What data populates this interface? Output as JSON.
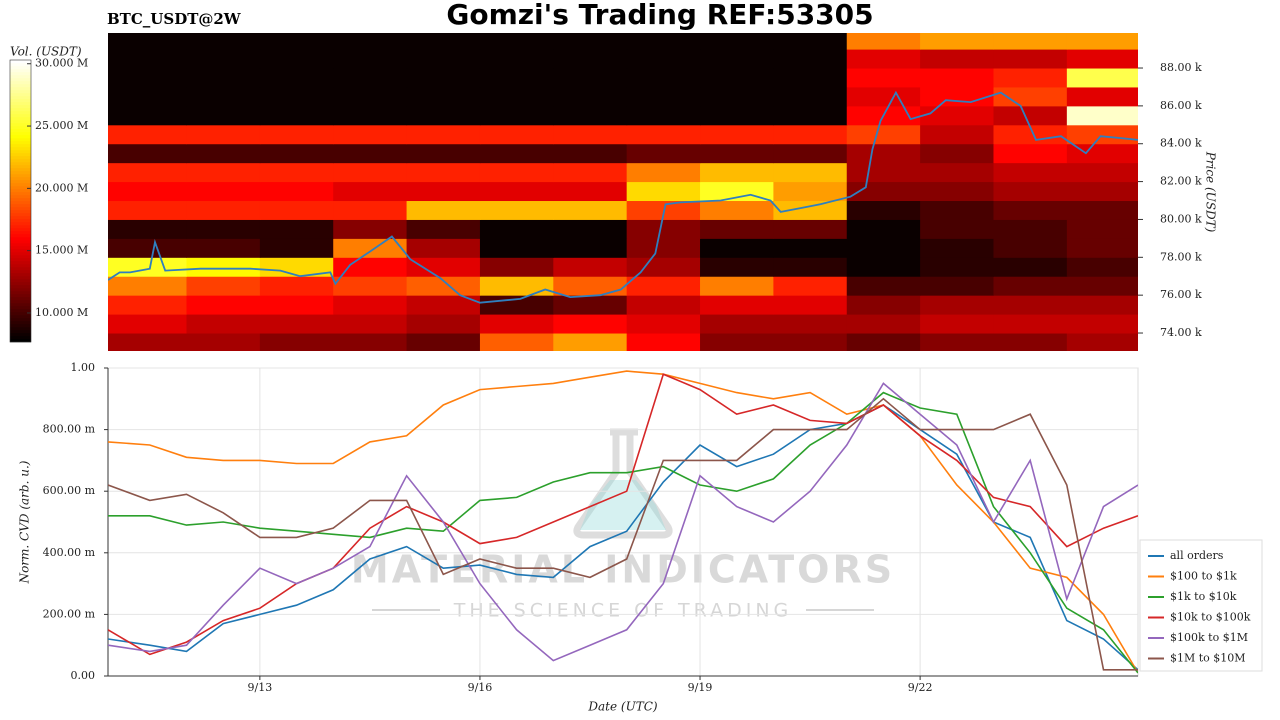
{
  "page_title": "Gomzi's Trading REF:53305",
  "watermark": {
    "brand": "MATERIAL INDICATORS",
    "tagline": "THE SCIENCE OF TRADING"
  },
  "chart_data": [
    {
      "type": "heatmap",
      "title": "BTC_USDT@2W",
      "ylabel": "Price (USDT)",
      "cmap": "hot",
      "xlim": [
        10.93,
        24.97
      ],
      "ylim": [
        73050,
        89850
      ],
      "yticks": [
        {
          "value": 74000,
          "label": "74.00 k"
        },
        {
          "value": 76000,
          "label": "76.00 k"
        },
        {
          "value": 78000,
          "label": "78.00 k"
        },
        {
          "value": 80000,
          "label": "80.00 k"
        },
        {
          "value": 82000,
          "label": "82.00 k"
        },
        {
          "value": 84000,
          "label": "84.00 k"
        },
        {
          "value": 86000,
          "label": "86.00 k"
        },
        {
          "value": 88000,
          "label": "88.00 k"
        }
      ],
      "colorbar": {
        "label": "Vol. (USDT)",
        "lim": [
          7670000,
          30300000
        ],
        "ticks": [
          {
            "value": 10000000,
            "label": "10.000 M"
          },
          {
            "value": 15000000,
            "label": "15.000 M"
          },
          {
            "value": 20000000,
            "label": "20.000 M"
          },
          {
            "value": 25000000,
            "label": "25.000 M"
          },
          {
            "value": 30000000,
            "label": "30.000 M"
          }
        ]
      },
      "x_edges": [
        10.93,
        12,
        13,
        14,
        15,
        16,
        17,
        18,
        19,
        20,
        21,
        22,
        23,
        24,
        24.97
      ],
      "y_edges": [
        73050,
        74000,
        75000,
        76000,
        77000,
        78000,
        79000,
        80000,
        81000,
        82000,
        83000,
        84000,
        85000,
        86000,
        87000,
        88000,
        89000,
        89850
      ],
      "z": [
        [
          13000000.0,
          13000000.0,
          12000000.0,
          12000000.0,
          11000000.0,
          19000000.0,
          21000000.0,
          16000000.0,
          12000000.0,
          12000000.0,
          11000000.0,
          12000000.0,
          12000000.0,
          13000000.0
        ],
        [
          15000000.0,
          14000000.0,
          14000000.0,
          14000000.0,
          13000000.0,
          15000000.0,
          16000000.0,
          15000000.0,
          13000000.0,
          13000000.0,
          13000000.0,
          14000000.0,
          14000000.0,
          14000000.0
        ],
        [
          17000000.0,
          16000000.0,
          16000000.0,
          15000000.0,
          14000000.0,
          10000000.0,
          11000000.0,
          14000000.0,
          15000000.0,
          15000000.0,
          12000000.0,
          13000000.0,
          13000000.0,
          13000000.0
        ],
        [
          20000000.0,
          18000000.0,
          17000000.0,
          18000000.0,
          19000000.0,
          22000000.0,
          19000000.0,
          17000000.0,
          20000000.0,
          17000000.0,
          10000000.0,
          10000000.0,
          11000000.0,
          11000000.0
        ],
        [
          25000000.0,
          24000000.0,
          23000000.0,
          16000000.0,
          15000000.0,
          12000000.0,
          14000000.0,
          13000000.0,
          9000000.0,
          9000000.0,
          8000000.0,
          9000000.0,
          9000000.0,
          10000000.0
        ],
        [
          10000000.0,
          10000000.0,
          9000000.0,
          20000000.0,
          13000000.0,
          8000000.0,
          8000000.0,
          12000000.0,
          8000000.0,
          8000000.0,
          8000000.0,
          9000000.0,
          10000000.0,
          11000000.0
        ],
        [
          9000000.0,
          9000000.0,
          9000000.0,
          12000000.0,
          10000000.0,
          8000000.0,
          8000000.0,
          12000000.0,
          11000000.0,
          11000000.0,
          8000000.0,
          10000000.0,
          10000000.0,
          11000000.0
        ],
        [
          17000000.0,
          17000000.0,
          17000000.0,
          17000000.0,
          22000000.0,
          22000000.0,
          22000000.0,
          18000000.0,
          20000000.0,
          22000000.0,
          9000000.0,
          10000000.0,
          11000000.0,
          11000000.0
        ],
        [
          16000000.0,
          16000000.0,
          16000000.0,
          15000000.0,
          15000000.0,
          15000000.0,
          15000000.0,
          23000000.0,
          25000000.0,
          21000000.0,
          12000000.0,
          12000000.0,
          13000000.0,
          13000000.0
        ],
        [
          17000000.0,
          17000000.0,
          17000000.0,
          17000000.0,
          17000000.0,
          17000000.0,
          17000000.0,
          20000000.0,
          22000000.0,
          22000000.0,
          13000000.0,
          13000000.0,
          14000000.0,
          14000000.0
        ],
        [
          10000000.0,
          10000000.0,
          10000000.0,
          10000000.0,
          10000000.0,
          10000000.0,
          10000000.0,
          11000000.0,
          11000000.0,
          11000000.0,
          13000000.0,
          12000000.0,
          16000000.0,
          15000000.0
        ],
        [
          17000000.0,
          17000000.0,
          17000000.0,
          17000000.0,
          17000000.0,
          17000000.0,
          17000000.0,
          17000000.0,
          17000000.0,
          17000000.0,
          18000000.0,
          14000000.0,
          17000000.0,
          18000000.0
        ],
        [
          8000000.0,
          8000000.0,
          8000000.0,
          8000000.0,
          8000000.0,
          8000000.0,
          8000000.0,
          8000000.0,
          8000000.0,
          8000000.0,
          16000000.0,
          15000000.0,
          14000000.0,
          29000000.0
        ],
        [
          8000000.0,
          8000000.0,
          8000000.0,
          8000000.0,
          8000000.0,
          8000000.0,
          8000000.0,
          8000000.0,
          8000000.0,
          8000000.0,
          15000000.0,
          16000000.0,
          18000000.0,
          15000000.0
        ],
        [
          8000000.0,
          8000000.0,
          8000000.0,
          8000000.0,
          8000000.0,
          8000000.0,
          8000000.0,
          8000000.0,
          8000000.0,
          8000000.0,
          16000000.0,
          16000000.0,
          17000000.0,
          26000000.0
        ],
        [
          8000000.0,
          8000000.0,
          8000000.0,
          8000000.0,
          8000000.0,
          8000000.0,
          8000000.0,
          8000000.0,
          8000000.0,
          8000000.0,
          15000000.0,
          14000000.0,
          14000000.0,
          15000000.0
        ],
        [
          8000000.0,
          8000000.0,
          8000000.0,
          8000000.0,
          8000000.0,
          8000000.0,
          8000000.0,
          8000000.0,
          8000000.0,
          8000000.0,
          20000000.0,
          21000000.0,
          21000000.0,
          21000000.0
        ]
      ],
      "price_line": {
        "color": "#2f7fbf",
        "x": [
          10.93,
          11.09,
          11.23,
          11.5,
          11.57,
          11.71,
          12.19,
          12.87,
          13.28,
          13.55,
          13.96,
          14.03,
          14.23,
          14.5,
          14.8,
          15.05,
          15.46,
          15.73,
          16.0,
          16.55,
          16.89,
          17.23,
          17.64,
          17.92,
          18.19,
          18.39,
          18.53,
          18.73,
          19.28,
          19.69,
          19.96,
          20.1,
          20.37,
          20.64,
          21.05,
          21.26,
          21.35,
          21.46,
          21.67,
          21.87,
          22.14,
          22.35,
          22.69,
          23.1,
          23.37,
          23.58,
          23.92,
          24.26,
          24.46,
          24.74,
          24.97
        ],
        "values": [
          76800,
          77200,
          77200,
          77400,
          78800,
          77300,
          77400,
          77400,
          77300,
          77000,
          77200,
          76600,
          77600,
          78300,
          79100,
          77900,
          76900,
          76000,
          75600,
          75800,
          76300,
          75900,
          76000,
          76300,
          77200,
          78200,
          80800,
          80900,
          81000,
          81300,
          81000,
          80400,
          80600,
          80800,
          81200,
          81700,
          83700,
          85200,
          86700,
          85300,
          85600,
          86300,
          86200,
          86700,
          86000,
          84200,
          84400,
          83500,
          84400,
          84300,
          84200
        ]
      }
    },
    {
      "type": "line",
      "xlabel": "Date (UTC)",
      "ylabel": "Norm. CVD (arb. u.)",
      "grid": true,
      "legend": "right",
      "xlim": [
        10.93,
        24.97
      ],
      "ylim": [
        0,
        1
      ],
      "xticks": [
        {
          "value": 13,
          "label": "9/13"
        },
        {
          "value": 16,
          "label": "9/16"
        },
        {
          "value": 19,
          "label": "9/19"
        },
        {
          "value": 22,
          "label": "9/22"
        }
      ],
      "yticks": [
        {
          "value": 0,
          "label": "0.00"
        },
        {
          "value": 0.2,
          "label": "200.00 m"
        },
        {
          "value": 0.4,
          "label": "400.00 m"
        },
        {
          "value": 0.6,
          "label": "600.00 m"
        },
        {
          "value": 0.8,
          "label": "800.00 m"
        },
        {
          "value": 1,
          "label": "1.00"
        }
      ],
      "x": [
        10.93,
        11.5,
        12,
        12.5,
        13,
        13.5,
        14,
        14.5,
        15,
        15.5,
        16,
        16.5,
        17,
        17.5,
        18,
        18.5,
        19,
        19.5,
        20,
        20.5,
        21,
        21.5,
        22,
        22.5,
        23,
        23.5,
        24,
        24.5,
        24.97
      ],
      "series": [
        {
          "name": "all orders",
          "color": "#1f77b4",
          "values": [
            0.12,
            0.1,
            0.08,
            0.17,
            0.2,
            0.23,
            0.28,
            0.38,
            0.42,
            0.35,
            0.36,
            0.33,
            0.32,
            0.42,
            0.47,
            0.63,
            0.75,
            0.68,
            0.72,
            0.8,
            0.82,
            0.88,
            0.8,
            0.72,
            0.5,
            0.45,
            0.18,
            0.12,
            0.02
          ]
        },
        {
          "name": "$100 to $1k",
          "color": "#ff7f0e",
          "values": [
            0.76,
            0.75,
            0.71,
            0.7,
            0.7,
            0.69,
            0.69,
            0.76,
            0.78,
            0.88,
            0.93,
            0.94,
            0.95,
            0.97,
            0.99,
            0.98,
            0.95,
            0.92,
            0.9,
            0.92,
            0.85,
            0.88,
            0.78,
            0.62,
            0.5,
            0.35,
            0.32,
            0.2,
            0.01
          ]
        },
        {
          "name": "$1k to $10k",
          "color": "#2ca02c",
          "values": [
            0.52,
            0.52,
            0.49,
            0.5,
            0.48,
            0.47,
            0.46,
            0.45,
            0.48,
            0.47,
            0.57,
            0.58,
            0.63,
            0.66,
            0.66,
            0.68,
            0.62,
            0.6,
            0.64,
            0.75,
            0.82,
            0.92,
            0.87,
            0.85,
            0.55,
            0.4,
            0.22,
            0.15,
            0.01
          ]
        },
        {
          "name": "$10k to $100k",
          "color": "#d62728",
          "values": [
            0.15,
            0.07,
            0.11,
            0.18,
            0.22,
            0.3,
            0.35,
            0.48,
            0.55,
            0.5,
            0.43,
            0.45,
            0.5,
            0.55,
            0.6,
            0.98,
            0.93,
            0.85,
            0.88,
            0.83,
            0.82,
            0.88,
            0.78,
            0.7,
            0.58,
            0.55,
            0.42,
            0.48,
            0.52
          ]
        },
        {
          "name": "$100k to $1M",
          "color": "#9467bd",
          "values": [
            0.1,
            0.08,
            0.1,
            0.23,
            0.35,
            0.3,
            0.35,
            0.42,
            0.65,
            0.5,
            0.3,
            0.15,
            0.05,
            0.1,
            0.15,
            0.3,
            0.65,
            0.55,
            0.5,
            0.6,
            0.75,
            0.95,
            0.85,
            0.75,
            0.5,
            0.7,
            0.25,
            0.55,
            0.62
          ]
        },
        {
          "name": "$1M to $10M",
          "color": "#8c564b",
          "values": [
            0.62,
            0.57,
            0.59,
            0.53,
            0.45,
            0.45,
            0.48,
            0.57,
            0.57,
            0.33,
            0.38,
            0.35,
            0.35,
            0.32,
            0.38,
            0.7,
            0.7,
            0.7,
            0.8,
            0.8,
            0.8,
            0.9,
            0.8,
            0.8,
            0.8,
            0.85,
            0.62,
            0.02,
            0.02
          ]
        }
      ]
    }
  ]
}
